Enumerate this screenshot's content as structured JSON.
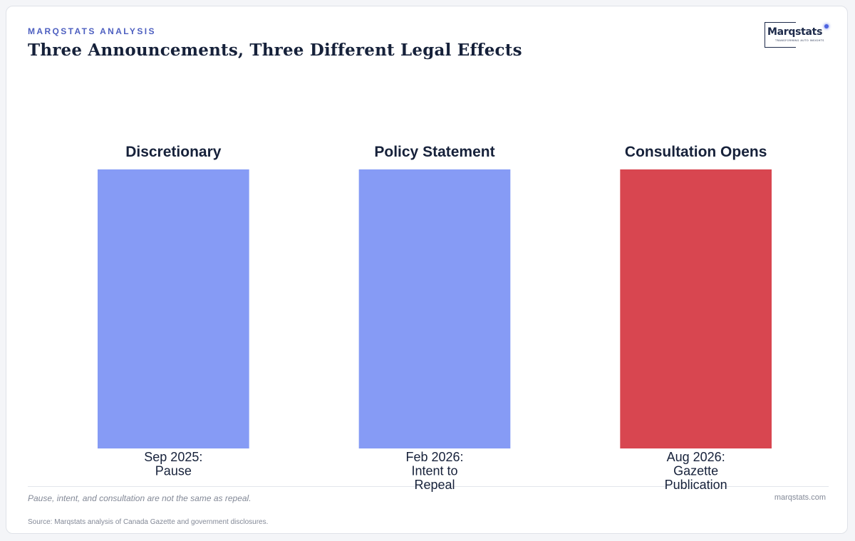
{
  "header": {
    "eyebrow": "MARQSTATS ANALYSIS",
    "title": "Three Announcements, Three Different Legal Effects"
  },
  "logo": {
    "name": "Marqstats",
    "tagline": "TRANSFORMING AUTO INSIGHTS"
  },
  "chart_data": {
    "type": "bar",
    "categories": [
      [
        "Sep 2025:",
        "Pause"
      ],
      [
        "Feb 2026:",
        "Intent to",
        "Repeal"
      ],
      [
        "Aug 2026:",
        "Gazette",
        "Publication"
      ]
    ],
    "bar_labels": [
      "Discretionary",
      "Policy Statement",
      "Consultation Opens"
    ],
    "values": [
      1,
      1,
      1
    ],
    "ylim": [
      0,
      1
    ],
    "colors": [
      "#869bf5",
      "#869bf5",
      "#d84650"
    ],
    "grid": false,
    "legend": "none",
    "xlabel": "",
    "ylabel": ""
  },
  "footer": {
    "note": "Pause, intent, and consultation are not the same as repeal.",
    "site": "marqstats.com",
    "source": "Source: Marqstats analysis of Canada Gazette and government disclosures."
  }
}
